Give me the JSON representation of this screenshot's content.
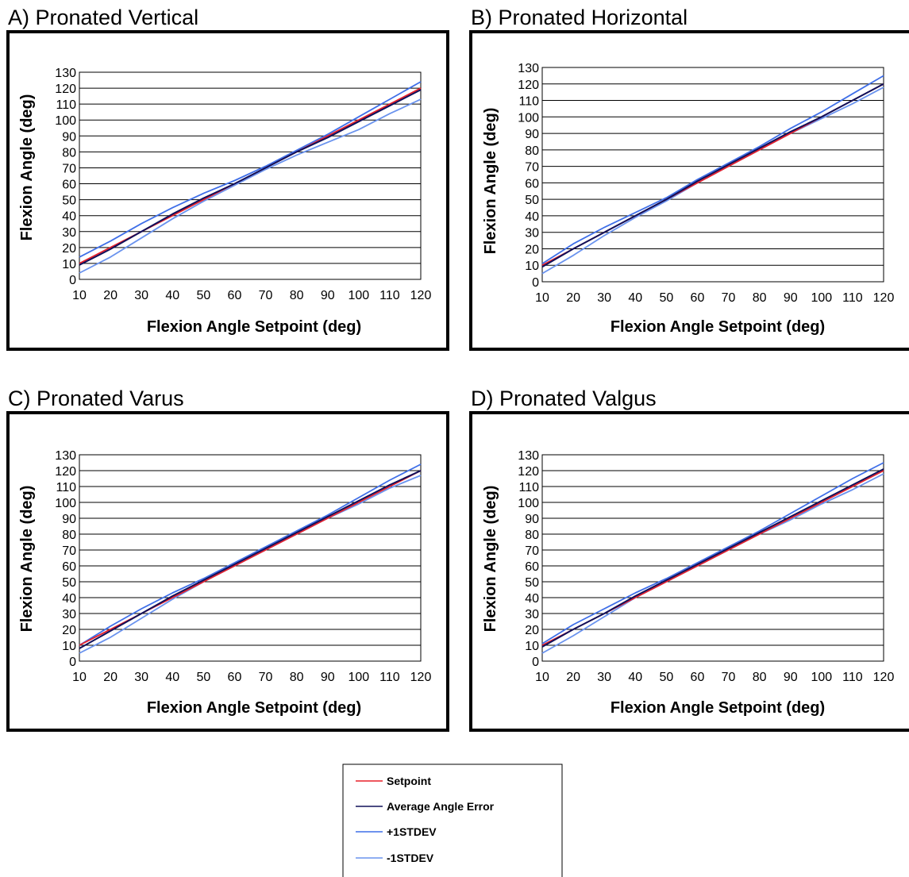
{
  "legend": {
    "entries": [
      {
        "label": "Setpoint",
        "color": "#e8202a"
      },
      {
        "label": "Average Angle Error",
        "color": "#10105a"
      },
      {
        "label": "+1STDEV",
        "color": "#3f6fe8"
      },
      {
        "label": "-1STDEV",
        "color": "#6a93ee"
      }
    ]
  },
  "chart_data": [
    {
      "type": "line",
      "panel_label": "A) Pronated Vertical",
      "xlabel": "Flexion Angle Setpoint (deg)",
      "ylabel": "Flexion Angle (deg)",
      "x_ticks": [
        "10",
        "20",
        "30",
        "40",
        "50",
        "60",
        "70",
        "80",
        "90",
        "100",
        "110",
        "120"
      ],
      "y_ticks": [
        "0",
        "10",
        "20",
        "30",
        "40",
        "50",
        "60",
        "70",
        "80",
        "90",
        "100",
        "110",
        "120",
        "130"
      ],
      "xlim": [
        10,
        120
      ],
      "ylim": [
        0,
        130
      ],
      "grid": true,
      "x": [
        10,
        20,
        30,
        40,
        50,
        60,
        70,
        80,
        90,
        100,
        110,
        120
      ],
      "series": [
        {
          "name": "Setpoint",
          "color": "#e8202a",
          "values": [
            10,
            20,
            30,
            40,
            50,
            60,
            70,
            80,
            90,
            100,
            110,
            120
          ]
        },
        {
          "name": "Average Angle Error",
          "color": "#10105a",
          "values": [
            9,
            19,
            30,
            41,
            51,
            60,
            70,
            80,
            89,
            99,
            109,
            119
          ]
        },
        {
          "name": "+1STDEV",
          "color": "#3f6fe8",
          "values": [
            14,
            24,
            35,
            45,
            54,
            62,
            71,
            81,
            91,
            102,
            113,
            124
          ]
        },
        {
          "name": "-1STDEV",
          "color": "#6a93ee",
          "values": [
            4,
            14,
            26,
            38,
            49,
            59,
            69,
            78,
            86,
            94,
            104,
            113
          ]
        }
      ]
    },
    {
      "type": "line",
      "panel_label": "B) Pronated Horizontal",
      "xlabel": "Flexion Angle Setpoint (deg)",
      "ylabel": "Flexion Angle (deg)",
      "x_ticks": [
        "10",
        "20",
        "30",
        "40",
        "50",
        "60",
        "70",
        "80",
        "90",
        "100",
        "110",
        "120"
      ],
      "y_ticks": [
        "0",
        "10",
        "20",
        "30",
        "40",
        "50",
        "60",
        "70",
        "80",
        "90",
        "100",
        "110",
        "120",
        "130"
      ],
      "xlim": [
        10,
        120
      ],
      "ylim": [
        0,
        130
      ],
      "grid": true,
      "x": [
        10,
        20,
        30,
        40,
        50,
        60,
        70,
        80,
        90,
        100,
        110,
        120
      ],
      "series": [
        {
          "name": "Setpoint",
          "color": "#e8202a",
          "values": [
            10,
            20,
            30,
            40,
            50,
            60,
            70,
            80,
            90,
            100,
            110,
            120
          ]
        },
        {
          "name": "Average Angle Error",
          "color": "#10105a",
          "values": [
            9,
            20,
            30,
            40,
            50,
            61,
            71,
            81,
            91,
            100,
            110,
            120
          ]
        },
        {
          "name": "+1STDEV",
          "color": "#3f6fe8",
          "values": [
            11,
            23,
            33,
            42,
            51,
            62,
            72,
            82,
            93,
            103,
            114,
            125
          ]
        },
        {
          "name": "-1STDEV",
          "color": "#6a93ee",
          "values": [
            5,
            16,
            28,
            39,
            49,
            60,
            70,
            80,
            90,
            99,
            108,
            118
          ]
        }
      ]
    },
    {
      "type": "line",
      "panel_label": "C) Pronated Varus",
      "xlabel": "Flexion Angle Setpoint (deg)",
      "ylabel": "Flexion Angle (deg)",
      "x_ticks": [
        "10",
        "20",
        "30",
        "40",
        "50",
        "60",
        "70",
        "80",
        "90",
        "100",
        "110",
        "120"
      ],
      "y_ticks": [
        "0",
        "10",
        "20",
        "30",
        "40",
        "50",
        "60",
        "70",
        "80",
        "90",
        "100",
        "110",
        "120",
        "130"
      ],
      "xlim": [
        10,
        120
      ],
      "ylim": [
        0,
        130
      ],
      "grid": true,
      "x": [
        10,
        20,
        30,
        40,
        50,
        60,
        70,
        80,
        90,
        100,
        110,
        120
      ],
      "series": [
        {
          "name": "Setpoint",
          "color": "#e8202a",
          "values": [
            10,
            20,
            30,
            40,
            50,
            60,
            70,
            80,
            90,
            100,
            110,
            120
          ]
        },
        {
          "name": "Average Angle Error",
          "color": "#10105a",
          "values": [
            8,
            19,
            30,
            41,
            51,
            61,
            71,
            81,
            91,
            101,
            111,
            120
          ]
        },
        {
          "name": "+1STDEV",
          "color": "#3f6fe8",
          "values": [
            10,
            22,
            33,
            43,
            52,
            62,
            72,
            82,
            92,
            103,
            114,
            124
          ]
        },
        {
          "name": "-1STDEV",
          "color": "#6a93ee",
          "values": [
            5,
            15,
            27,
            39,
            50,
            60,
            70,
            80,
            90,
            99,
            109,
            117
          ]
        }
      ]
    },
    {
      "type": "line",
      "panel_label": "D) Pronated Valgus",
      "xlabel": "Flexion Angle Setpoint (deg)",
      "ylabel": "Flexion Angle (deg)",
      "x_ticks": [
        "10",
        "20",
        "30",
        "40",
        "50",
        "60",
        "70",
        "80",
        "90",
        "100",
        "110",
        "120"
      ],
      "y_ticks": [
        "0",
        "10",
        "20",
        "30",
        "40",
        "50",
        "60",
        "70",
        "80",
        "90",
        "100",
        "110",
        "120",
        "130"
      ],
      "xlim": [
        10,
        120
      ],
      "ylim": [
        0,
        130
      ],
      "grid": true,
      "x": [
        10,
        20,
        30,
        40,
        50,
        60,
        70,
        80,
        90,
        100,
        110,
        120
      ],
      "series": [
        {
          "name": "Setpoint",
          "color": "#e8202a",
          "values": [
            10,
            20,
            30,
            40,
            50,
            60,
            70,
            80,
            90,
            100,
            110,
            120
          ]
        },
        {
          "name": "Average Angle Error",
          "color": "#10105a",
          "values": [
            9,
            20,
            30,
            41,
            51,
            61,
            71,
            81,
            91,
            101,
            111,
            121
          ]
        },
        {
          "name": "+1STDEV",
          "color": "#3f6fe8",
          "values": [
            11,
            23,
            33,
            43,
            52,
            62,
            72,
            82,
            93,
            104,
            115,
            125
          ]
        },
        {
          "name": "-1STDEV",
          "color": "#6a93ee",
          "values": [
            5,
            16,
            28,
            40,
            50,
            60,
            70,
            80,
            89,
            99,
            108,
            118
          ]
        }
      ]
    }
  ]
}
